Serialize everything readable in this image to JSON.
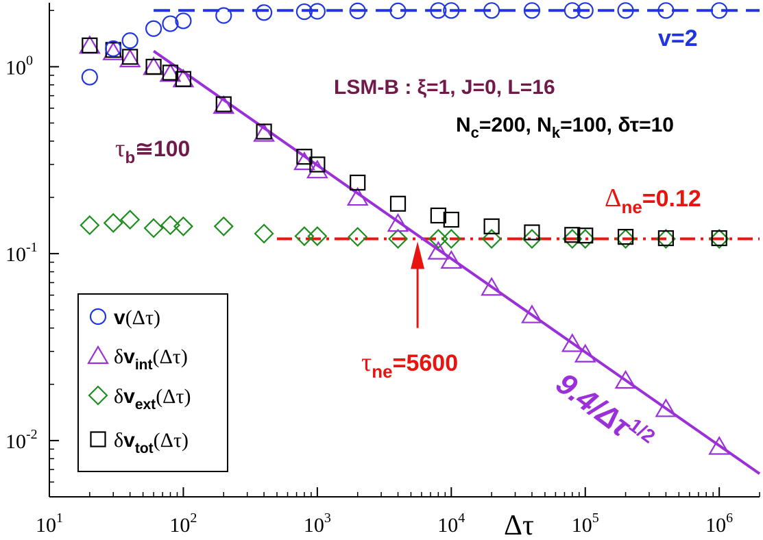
{
  "chart_data": {
    "type": "scatter",
    "xscale": "log",
    "yscale": "log",
    "xlim": [
      10,
      2000000
    ],
    "ylim": [
      0.005,
      2.2
    ],
    "xlabel": "Δτ",
    "xticks": [
      {
        "value": 10,
        "base": "10",
        "exp": "1"
      },
      {
        "value": 100,
        "base": "10",
        "exp": "2"
      },
      {
        "value": 1000,
        "base": "10",
        "exp": "3"
      },
      {
        "value": 10000,
        "base": "10",
        "exp": "4"
      },
      {
        "value": 100000,
        "base": "10",
        "exp": "5"
      },
      {
        "value": 1000000,
        "base": "10",
        "exp": "6"
      }
    ],
    "yticks": [
      {
        "value": 1,
        "base": "10",
        "exp": "0"
      },
      {
        "value": 0.1,
        "base": "10",
        "exp": "-1"
      },
      {
        "value": 0.01,
        "base": "10",
        "exp": "-2"
      }
    ],
    "series": [
      {
        "name": "v(Δτ)",
        "marker": "circle",
        "color": "#1f35e0",
        "x": [
          20,
          30,
          40,
          60,
          80,
          100,
          200,
          400,
          800,
          1000,
          2000,
          4000,
          8000,
          10000,
          20000,
          40000,
          80000,
          100000,
          200000,
          400000,
          1000000
        ],
        "y": [
          0.88,
          1.25,
          1.38,
          1.6,
          1.7,
          1.76,
          1.88,
          1.95,
          1.97,
          1.98,
          1.99,
          1.99,
          2.0,
          2.0,
          2.0,
          2.0,
          2.0,
          2.0,
          2.0,
          2.0,
          2.0
        ]
      },
      {
        "name": "δv_int(Δτ)",
        "marker": "triangle",
        "color": "#9b30d9",
        "x": [
          20,
          30,
          40,
          60,
          80,
          100,
          200,
          400,
          800,
          1000,
          2000,
          4000,
          8000,
          10000,
          20000,
          40000,
          80000,
          100000,
          200000,
          400000,
          1000000
        ],
        "y": [
          1.3,
          1.2,
          1.1,
          1.0,
          0.92,
          0.86,
          0.62,
          0.44,
          0.31,
          0.28,
          0.2,
          0.145,
          0.103,
          0.092,
          0.066,
          0.047,
          0.033,
          0.029,
          0.021,
          0.0148,
          0.0093
        ]
      },
      {
        "name": "δv_ext(Δτ)",
        "marker": "diamond",
        "color": "#1e8c1e",
        "x": [
          20,
          30,
          40,
          60,
          80,
          100,
          200,
          400,
          800,
          1000,
          2000,
          4000,
          8000,
          10000,
          20000,
          40000,
          80000,
          100000,
          200000,
          400000,
          1000000
        ],
        "y": [
          0.142,
          0.146,
          0.152,
          0.137,
          0.142,
          0.14,
          0.14,
          0.128,
          0.124,
          0.124,
          0.123,
          0.12,
          0.12,
          0.12,
          0.12,
          0.12,
          0.12,
          0.12,
          0.12,
          0.12,
          0.12
        ]
      },
      {
        "name": "δv_tot(Δτ)",
        "marker": "square",
        "color": "#000000",
        "x": [
          20,
          30,
          40,
          60,
          80,
          100,
          200,
          400,
          800,
          1000,
          2000,
          4000,
          8000,
          10000,
          20000,
          40000,
          80000,
          100000,
          200000,
          400000,
          1000000
        ],
        "y": [
          1.3,
          1.23,
          1.13,
          1.0,
          0.93,
          0.86,
          0.63,
          0.45,
          0.33,
          0.3,
          0.24,
          0.185,
          0.16,
          0.152,
          0.14,
          0.13,
          0.126,
          0.125,
          0.123,
          0.121,
          0.121
        ]
      }
    ],
    "reference_lines": {
      "plateau": {
        "y": 2,
        "x_from": 60,
        "x_to": 2000000,
        "color": "#1f35e0",
        "label": "v=2"
      },
      "power_law": {
        "coef": 9.4,
        "exponent": -0.5,
        "x_from": 60,
        "x_to": 2000000,
        "color": "#9b30d9",
        "label_main": "9.4/Δτ",
        "label_sup": "1/2"
      },
      "delta_ne": {
        "y": 0.12,
        "x_from": 500,
        "x_to": 2000000,
        "color": "#e8140f",
        "label_base": "Δ",
        "label_sub": "ne",
        "label_tail": "=0.12"
      }
    },
    "arrow": {
      "x": 5600,
      "y_tip": 0.12,
      "y_tail": 0.04,
      "color": "#e8140f",
      "label_base": "τ",
      "label_sub": "ne",
      "label_tail": "=5600"
    },
    "annotations": {
      "model_label": "LSM-B : ξ=1, J=0, L=16",
      "params": {
        "nc_base": "N",
        "nc_sub": "c",
        "nc_tail": "=200, ",
        "nk_base": "N",
        "nk_sub": "k",
        "nk_tail": "=100, ",
        "dt_text": "δτ=10"
      },
      "tau_b": {
        "base": "τ",
        "sub": "b",
        "tail": "≅100"
      },
      "colors": {
        "model": "#701a4a"
      }
    },
    "legend": {
      "position": "bottom-left",
      "entries": [
        {
          "base": "v",
          "sub": "",
          "tail": "(Δτ)",
          "prefix": ""
        },
        {
          "base": "v",
          "sub": "int",
          "tail": "(Δτ)",
          "prefix": "δ"
        },
        {
          "base": "v",
          "sub": "ext",
          "tail": "(Δτ)",
          "prefix": "δ"
        },
        {
          "base": "v",
          "sub": "tot",
          "tail": "(Δτ)",
          "prefix": "δ"
        }
      ]
    }
  }
}
